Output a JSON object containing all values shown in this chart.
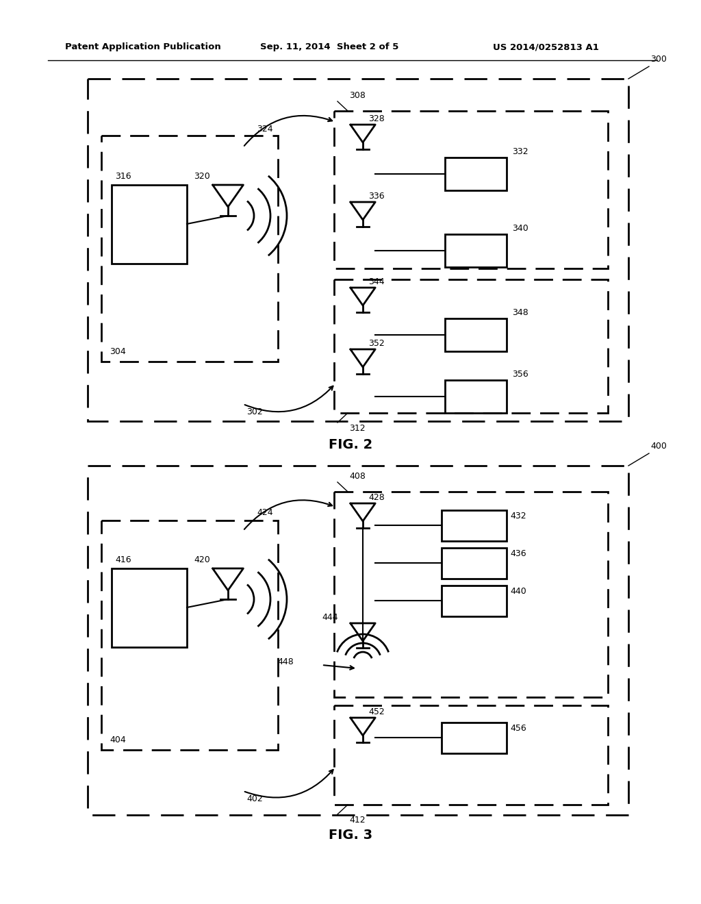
{
  "bg_color": "#ffffff",
  "line_color": "#000000",
  "header_text": "Patent Application Publication",
  "header_date": "Sep. 11, 2014  Sheet 2 of 5",
  "header_patent": "US 2014/0252813 A1"
}
